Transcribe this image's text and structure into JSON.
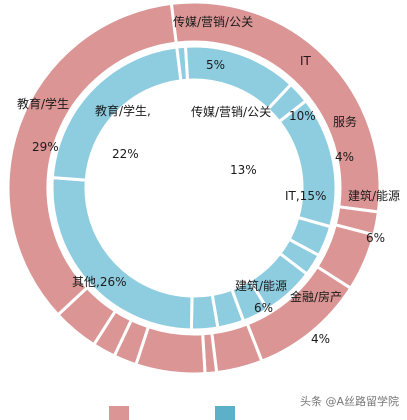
{
  "chart_data": {
    "type": "pie",
    "subtype": "nested-donut",
    "outer_ring": {
      "color": "#db9594",
      "slices": [
        {
          "label": "教育/学生",
          "value": 29
        },
        {
          "label": "",
          "value": 2
        },
        {
          "label": "传媒/营销/公关",
          "value": 5
        },
        {
          "label": "IT",
          "value": 10
        },
        {
          "label": "服务",
          "value": 4
        },
        {
          "label": "",
          "value": 1
        },
        {
          "label": "建筑/能源",
          "value": 6
        },
        {
          "label": "",
          "value": 2
        },
        {
          "label": "",
          "value": 2
        },
        {
          "label": "金融/房产",
          "value": 4
        },
        {
          "label": "",
          "value": 35
        }
      ]
    },
    "inner_ring": {
      "color": "#8ecde0",
      "slices": [
        {
          "label": "",
          "value": 1
        },
        {
          "label": "传媒/营销/公关",
          "value": 13
        },
        {
          "label": "",
          "value": 2.5
        },
        {
          "label": "IT",
          "value": 15
        },
        {
          "label": "",
          "value": 3.5
        },
        {
          "label": "",
          "value": 2.5
        },
        {
          "label": "建筑/能源",
          "value": 6
        },
        {
          "label": "",
          "value": 3
        },
        {
          "label": "",
          "value": 3
        },
        {
          "label": "",
          "value": 3
        },
        {
          "label": "其他",
          "value": 26
        },
        {
          "label": "教育/学生,",
          "value": 22
        }
      ]
    },
    "legend": {
      "placement": "bottom",
      "colors": [
        "#db9594",
        "#5cb1c9"
      ]
    }
  },
  "labels": {
    "outer_edu": "教育/学生",
    "outer_edu_pct": "29%",
    "outer_media": "传媒/营销/公关",
    "outer_media_pct": "5%",
    "outer_it": "IT",
    "outer_it_pct": "10%",
    "outer_service": "服务",
    "outer_service_pct": "4%",
    "outer_build": "建筑/能源",
    "outer_build_pct": "6%",
    "outer_finance": "金融/房产",
    "outer_finance_pct": "4%",
    "inner_edu": "教育/学生,",
    "inner_edu_pct": "22%",
    "inner_media": "传媒/营销/公关",
    "inner_media_pct": "13%",
    "inner_it": "IT,15%",
    "inner_build": "建筑/能源",
    "inner_build_pct": "6%",
    "inner_other": "其他,26%"
  },
  "watermark": "头条 @A丝路留学院"
}
